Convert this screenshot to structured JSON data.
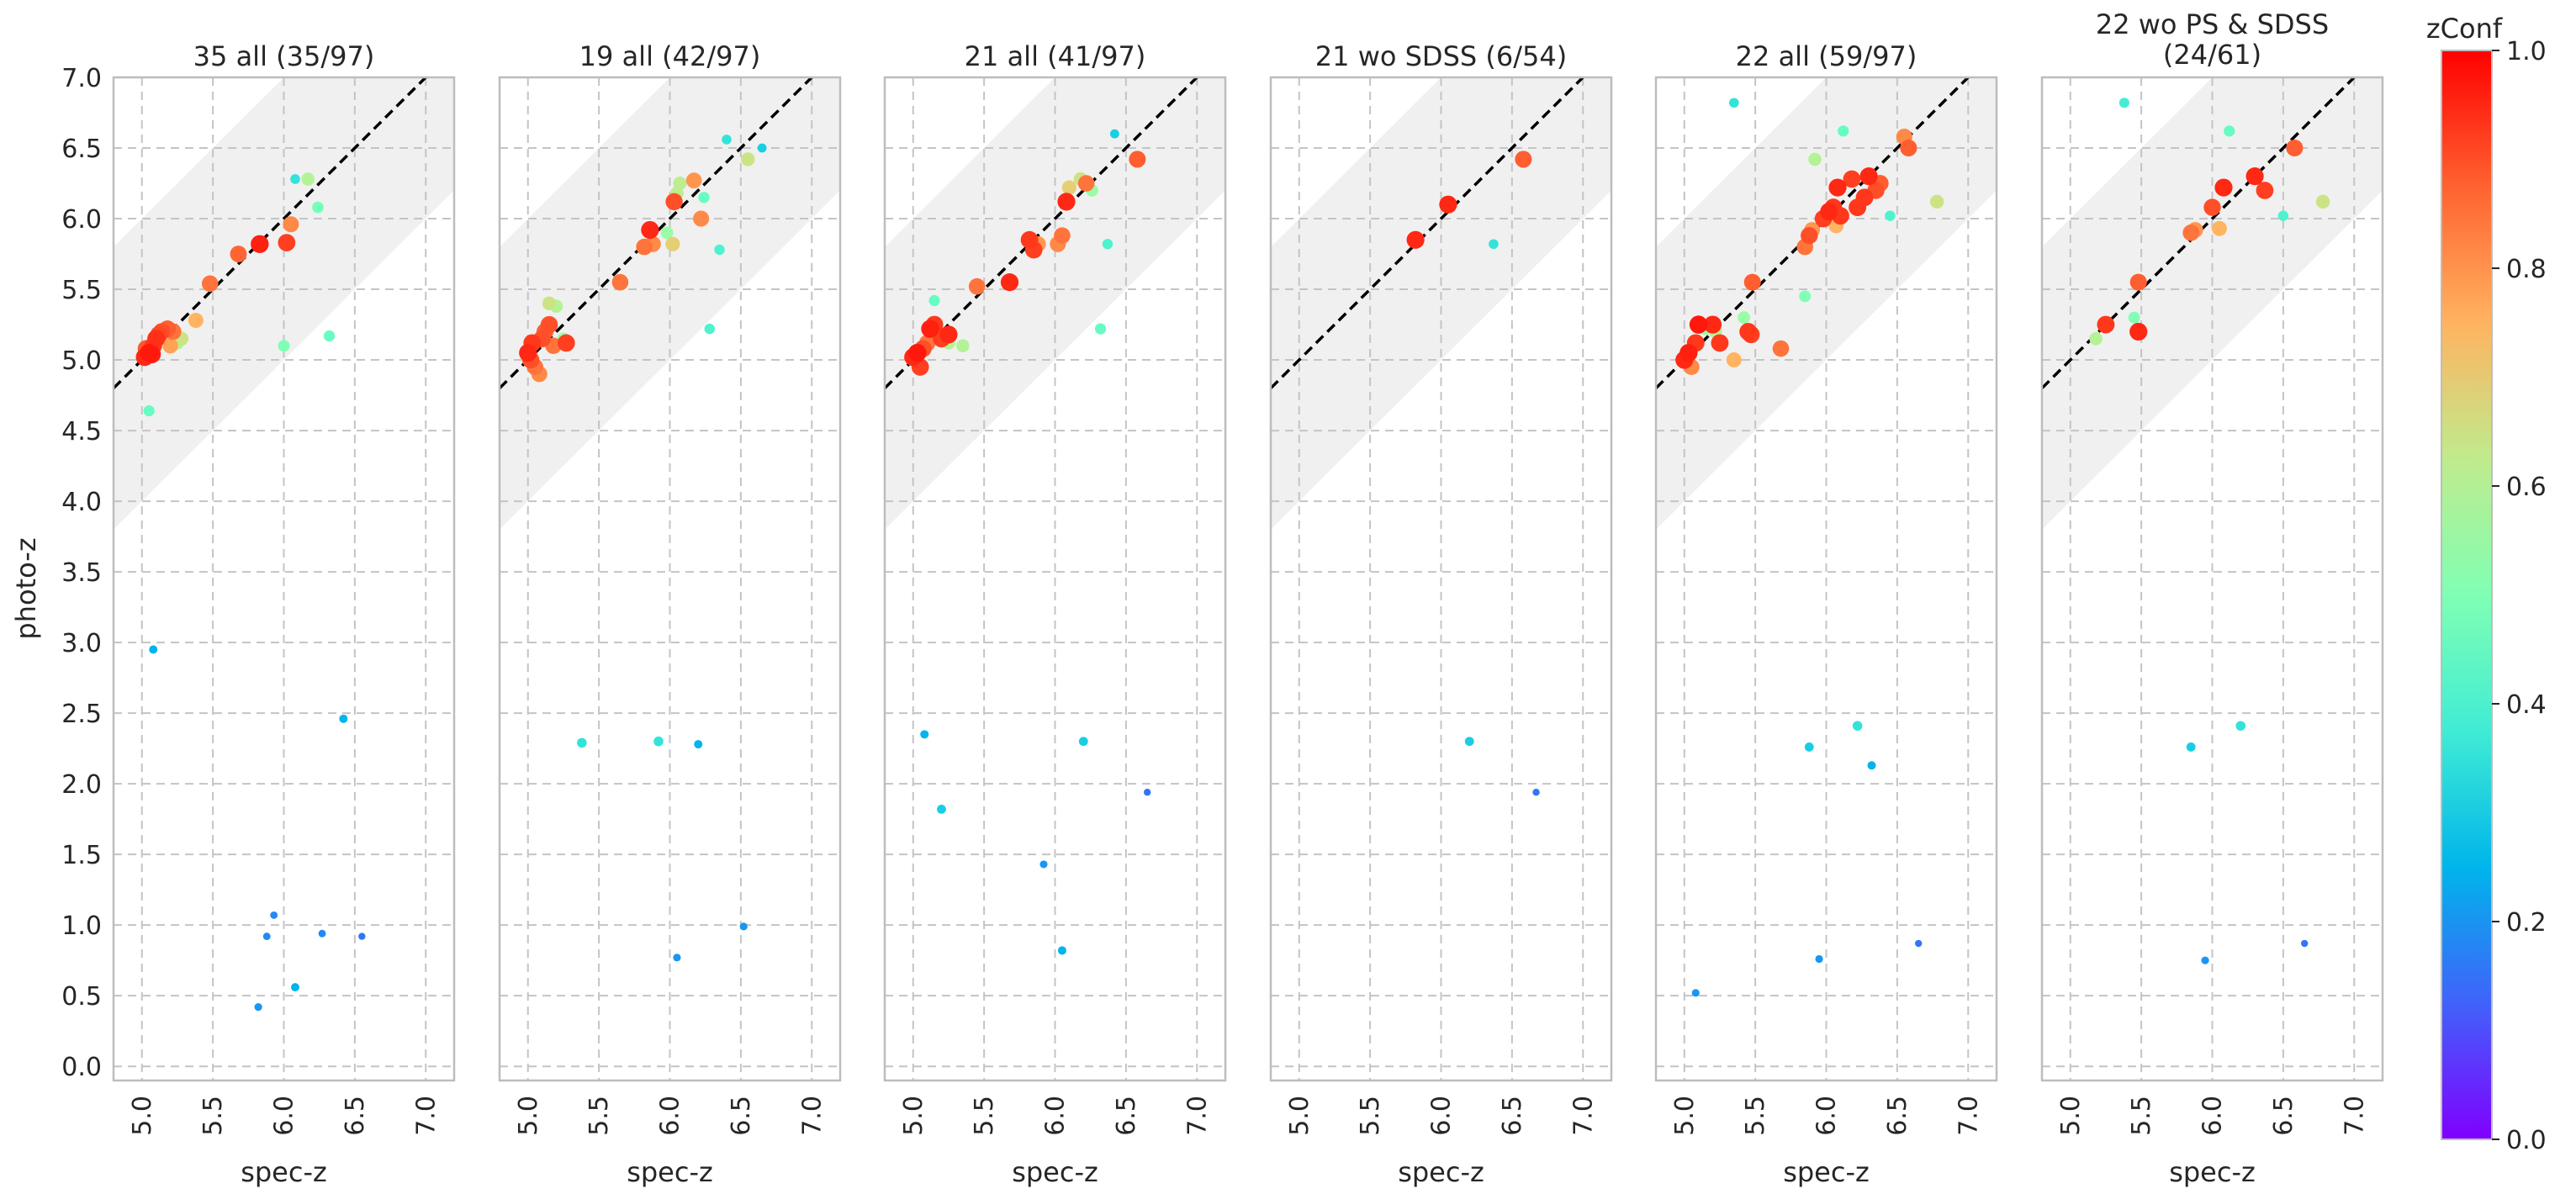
{
  "figure": {
    "ylabel": "photo-z",
    "xlabel": "spec-z",
    "colorbar": {
      "label": "zConf",
      "ticks": [
        "0.0",
        "0.2",
        "0.4",
        "0.6",
        "0.8",
        "1.0"
      ]
    },
    "x_ticks": [
      "5.0",
      "5.5",
      "6.0",
      "6.5",
      "7.0"
    ],
    "y_ticks": [
      "0.0",
      "0.5",
      "1.0",
      "1.5",
      "2.0",
      "2.5",
      "3.0",
      "3.5",
      "4.0",
      "4.5",
      "5.0",
      "5.5",
      "6.0",
      "6.5",
      "7.0"
    ]
  },
  "chart_data": [
    {
      "type": "scatter",
      "title": "35 all (35/97)",
      "xlabel": "spec-z",
      "ylabel": "photo-z",
      "xlim": [
        4.8,
        7.2
      ],
      "ylim": [
        -0.1,
        7.0
      ],
      "grid": true,
      "identity_line": true,
      "shaded_band": true,
      "color_key": "zConf",
      "colormap": "rainbow",
      "color_range": [
        0.0,
        1.0
      ],
      "points": [
        {
          "x": 5.02,
          "y": 5.02,
          "c": 0.95
        },
        {
          "x": 5.05,
          "y": 5.05,
          "c": 0.97
        },
        {
          "x": 5.07,
          "y": 5.04,
          "c": 0.96
        },
        {
          "x": 5.08,
          "y": 5.1,
          "c": 0.93
        },
        {
          "x": 5.1,
          "y": 5.15,
          "c": 0.94
        },
        {
          "x": 5.14,
          "y": 5.2,
          "c": 0.9
        },
        {
          "x": 5.18,
          "y": 5.22,
          "c": 0.88
        },
        {
          "x": 5.2,
          "y": 5.1,
          "c": 0.78
        },
        {
          "x": 5.25,
          "y": 5.12,
          "c": 0.6
        },
        {
          "x": 5.28,
          "y": 5.15,
          "c": 0.65
        },
        {
          "x": 5.22,
          "y": 5.2,
          "c": 0.85
        },
        {
          "x": 5.05,
          "y": 4.64,
          "c": 0.45
        },
        {
          "x": 5.38,
          "y": 5.28,
          "c": 0.75
        },
        {
          "x": 5.48,
          "y": 5.54,
          "c": 0.85
        },
        {
          "x": 5.68,
          "y": 5.75,
          "c": 0.87
        },
        {
          "x": 5.83,
          "y": 5.82,
          "c": 0.96
        },
        {
          "x": 6.02,
          "y": 5.83,
          "c": 0.92
        },
        {
          "x": 6.05,
          "y": 5.96,
          "c": 0.82
        },
        {
          "x": 6.0,
          "y": 5.1,
          "c": 0.5
        },
        {
          "x": 6.08,
          "y": 6.28,
          "c": 0.35
        },
        {
          "x": 6.17,
          "y": 6.28,
          "c": 0.6
        },
        {
          "x": 6.24,
          "y": 6.08,
          "c": 0.48
        },
        {
          "x": 6.32,
          "y": 5.17,
          "c": 0.45
        },
        {
          "x": 5.08,
          "y": 2.95,
          "c": 0.25
        },
        {
          "x": 6.42,
          "y": 2.46,
          "c": 0.25
        },
        {
          "x": 5.93,
          "y": 1.07,
          "c": 0.18
        },
        {
          "x": 5.88,
          "y": 0.92,
          "c": 0.18
        },
        {
          "x": 6.27,
          "y": 0.94,
          "c": 0.18
        },
        {
          "x": 6.55,
          "y": 0.92,
          "c": 0.15
        },
        {
          "x": 5.82,
          "y": 0.42,
          "c": 0.2
        },
        {
          "x": 6.08,
          "y": 0.56,
          "c": 0.25
        },
        {
          "x": 5.12,
          "y": 5.18,
          "c": 0.91
        },
        {
          "x": 5.03,
          "y": 5.08,
          "c": 0.89
        }
      ]
    },
    {
      "type": "scatter",
      "title": "19 all (42/97)",
      "xlabel": "spec-z",
      "ylabel": "photo-z",
      "xlim": [
        4.8,
        7.2
      ],
      "ylim": [
        -0.1,
        7.0
      ],
      "grid": true,
      "identity_line": true,
      "shaded_band": true,
      "color_key": "zConf",
      "colormap": "rainbow",
      "color_range": [
        0.0,
        1.0
      ],
      "points": [
        {
          "x": 5.0,
          "y": 5.05,
          "c": 0.95
        },
        {
          "x": 5.02,
          "y": 5.0,
          "c": 0.9
        },
        {
          "x": 5.05,
          "y": 4.95,
          "c": 0.85
        },
        {
          "x": 5.08,
          "y": 4.9,
          "c": 0.82
        },
        {
          "x": 5.03,
          "y": 5.12,
          "c": 0.93
        },
        {
          "x": 5.1,
          "y": 5.15,
          "c": 0.9
        },
        {
          "x": 5.12,
          "y": 5.2,
          "c": 0.88
        },
        {
          "x": 5.15,
          "y": 5.25,
          "c": 0.9
        },
        {
          "x": 5.18,
          "y": 5.1,
          "c": 0.85
        },
        {
          "x": 5.15,
          "y": 5.4,
          "c": 0.65
        },
        {
          "x": 5.2,
          "y": 5.38,
          "c": 0.6
        },
        {
          "x": 5.25,
          "y": 5.15,
          "c": 0.55
        },
        {
          "x": 5.27,
          "y": 5.12,
          "c": 0.92
        },
        {
          "x": 5.65,
          "y": 5.55,
          "c": 0.85
        },
        {
          "x": 5.82,
          "y": 5.8,
          "c": 0.85
        },
        {
          "x": 5.86,
          "y": 5.92,
          "c": 0.95
        },
        {
          "x": 5.88,
          "y": 5.82,
          "c": 0.82
        },
        {
          "x": 5.98,
          "y": 5.9,
          "c": 0.55
        },
        {
          "x": 6.02,
          "y": 5.82,
          "c": 0.7
        },
        {
          "x": 6.03,
          "y": 6.12,
          "c": 0.9
        },
        {
          "x": 6.05,
          "y": 6.18,
          "c": 0.62
        },
        {
          "x": 6.07,
          "y": 6.25,
          "c": 0.62
        },
        {
          "x": 6.17,
          "y": 6.27,
          "c": 0.8
        },
        {
          "x": 6.22,
          "y": 6.0,
          "c": 0.82
        },
        {
          "x": 6.24,
          "y": 6.15,
          "c": 0.45
        },
        {
          "x": 6.28,
          "y": 5.22,
          "c": 0.4
        },
        {
          "x": 6.35,
          "y": 5.78,
          "c": 0.4
        },
        {
          "x": 6.4,
          "y": 6.56,
          "c": 0.35
        },
        {
          "x": 6.55,
          "y": 6.42,
          "c": 0.65
        },
        {
          "x": 6.65,
          "y": 6.5,
          "c": 0.3
        },
        {
          "x": 5.38,
          "y": 2.29,
          "c": 0.35
        },
        {
          "x": 5.92,
          "y": 2.3,
          "c": 0.35
        },
        {
          "x": 6.2,
          "y": 2.28,
          "c": 0.25
        },
        {
          "x": 6.05,
          "y": 0.77,
          "c": 0.2
        },
        {
          "x": 6.52,
          "y": 0.99,
          "c": 0.2
        }
      ]
    },
    {
      "type": "scatter",
      "title": "21 all (41/97)",
      "xlabel": "spec-z",
      "ylabel": "photo-z",
      "xlim": [
        4.8,
        7.2
      ],
      "ylim": [
        -0.1,
        7.0
      ],
      "grid": true,
      "identity_line": true,
      "shaded_band": true,
      "color_key": "zConf",
      "colormap": "rainbow",
      "color_range": [
        0.0,
        1.0
      ],
      "points": [
        {
          "x": 5.0,
          "y": 5.02,
          "c": 0.95
        },
        {
          "x": 5.03,
          "y": 5.05,
          "c": 0.97
        },
        {
          "x": 5.05,
          "y": 4.95,
          "c": 0.92
        },
        {
          "x": 5.07,
          "y": 5.08,
          "c": 0.9
        },
        {
          "x": 5.1,
          "y": 5.12,
          "c": 0.85
        },
        {
          "x": 5.12,
          "y": 5.22,
          "c": 0.96
        },
        {
          "x": 5.15,
          "y": 5.25,
          "c": 0.93
        },
        {
          "x": 5.2,
          "y": 5.15,
          "c": 0.92
        },
        {
          "x": 5.25,
          "y": 5.18,
          "c": 0.95
        },
        {
          "x": 5.25,
          "y": 5.12,
          "c": 0.6
        },
        {
          "x": 5.35,
          "y": 5.1,
          "c": 0.6
        },
        {
          "x": 5.15,
          "y": 5.42,
          "c": 0.45
        },
        {
          "x": 5.45,
          "y": 5.52,
          "c": 0.85
        },
        {
          "x": 5.68,
          "y": 5.55,
          "c": 0.95
        },
        {
          "x": 5.82,
          "y": 5.85,
          "c": 0.93
        },
        {
          "x": 5.85,
          "y": 5.78,
          "c": 0.92
        },
        {
          "x": 5.88,
          "y": 5.82,
          "c": 0.8
        },
        {
          "x": 6.02,
          "y": 5.82,
          "c": 0.82
        },
        {
          "x": 6.05,
          "y": 5.88,
          "c": 0.85
        },
        {
          "x": 6.08,
          "y": 6.12,
          "c": 0.95
        },
        {
          "x": 6.1,
          "y": 6.22,
          "c": 0.7
        },
        {
          "x": 6.18,
          "y": 6.28,
          "c": 0.65
        },
        {
          "x": 6.22,
          "y": 6.25,
          "c": 0.85
        },
        {
          "x": 6.26,
          "y": 6.2,
          "c": 0.55
        },
        {
          "x": 6.32,
          "y": 5.22,
          "c": 0.45
        },
        {
          "x": 6.37,
          "y": 5.82,
          "c": 0.4
        },
        {
          "x": 6.42,
          "y": 6.6,
          "c": 0.3
        },
        {
          "x": 6.58,
          "y": 6.42,
          "c": 0.88
        },
        {
          "x": 5.08,
          "y": 2.35,
          "c": 0.25
        },
        {
          "x": 5.2,
          "y": 1.82,
          "c": 0.3
        },
        {
          "x": 6.2,
          "y": 2.3,
          "c": 0.3
        },
        {
          "x": 6.65,
          "y": 1.94,
          "c": 0.15
        },
        {
          "x": 5.92,
          "y": 1.43,
          "c": 0.2
        },
        {
          "x": 6.05,
          "y": 0.82,
          "c": 0.25
        }
      ]
    },
    {
      "type": "scatter",
      "title": "21 wo SDSS (6/54)",
      "xlabel": "spec-z",
      "ylabel": "photo-z",
      "xlim": [
        4.8,
        7.2
      ],
      "ylim": [
        -0.1,
        7.0
      ],
      "grid": true,
      "identity_line": true,
      "shaded_band": true,
      "color_key": "zConf",
      "colormap": "rainbow",
      "color_range": [
        0.0,
        1.0
      ],
      "points": [
        {
          "x": 5.82,
          "y": 5.85,
          "c": 0.95
        },
        {
          "x": 6.05,
          "y": 6.1,
          "c": 0.95
        },
        {
          "x": 6.58,
          "y": 6.42,
          "c": 0.88
        },
        {
          "x": 6.37,
          "y": 5.82,
          "c": 0.35
        },
        {
          "x": 6.2,
          "y": 2.3,
          "c": 0.3
        },
        {
          "x": 6.67,
          "y": 1.94,
          "c": 0.15
        }
      ]
    },
    {
      "type": "scatter",
      "title": "22 all (59/97)",
      "xlabel": "spec-z",
      "ylabel": "photo-z",
      "xlim": [
        4.8,
        7.2
      ],
      "ylim": [
        -0.1,
        7.0
      ],
      "grid": true,
      "identity_line": true,
      "shaded_band": true,
      "color_key": "zConf",
      "colormap": "rainbow",
      "color_range": [
        0.0,
        1.0
      ],
      "points": [
        {
          "x": 5.0,
          "y": 5.0,
          "c": 0.95
        },
        {
          "x": 5.03,
          "y": 5.05,
          "c": 0.96
        },
        {
          "x": 5.05,
          "y": 4.95,
          "c": 0.82
        },
        {
          "x": 5.08,
          "y": 5.12,
          "c": 0.93
        },
        {
          "x": 5.1,
          "y": 5.25,
          "c": 0.97
        },
        {
          "x": 5.15,
          "y": 5.22,
          "c": 0.55
        },
        {
          "x": 5.2,
          "y": 5.25,
          "c": 0.95
        },
        {
          "x": 5.25,
          "y": 5.12,
          "c": 0.93
        },
        {
          "x": 5.22,
          "y": 5.2,
          "c": 0.6
        },
        {
          "x": 5.35,
          "y": 5.0,
          "c": 0.75
        },
        {
          "x": 5.42,
          "y": 5.3,
          "c": 0.55
        },
        {
          "x": 5.45,
          "y": 5.2,
          "c": 0.93
        },
        {
          "x": 5.47,
          "y": 5.18,
          "c": 0.92
        },
        {
          "x": 5.48,
          "y": 5.55,
          "c": 0.88
        },
        {
          "x": 5.68,
          "y": 5.08,
          "c": 0.85
        },
        {
          "x": 5.85,
          "y": 5.45,
          "c": 0.5
        },
        {
          "x": 5.85,
          "y": 5.8,
          "c": 0.85
        },
        {
          "x": 5.88,
          "y": 5.88,
          "c": 0.9
        },
        {
          "x": 5.9,
          "y": 5.92,
          "c": 0.8
        },
        {
          "x": 5.92,
          "y": 6.42,
          "c": 0.6
        },
        {
          "x": 5.98,
          "y": 6.0,
          "c": 0.92
        },
        {
          "x": 6.02,
          "y": 6.05,
          "c": 0.95
        },
        {
          "x": 6.05,
          "y": 6.08,
          "c": 0.93
        },
        {
          "x": 6.07,
          "y": 5.95,
          "c": 0.75
        },
        {
          "x": 6.08,
          "y": 6.22,
          "c": 0.95
        },
        {
          "x": 6.1,
          "y": 6.02,
          "c": 0.93
        },
        {
          "x": 6.12,
          "y": 6.62,
          "c": 0.45
        },
        {
          "x": 6.18,
          "y": 6.28,
          "c": 0.92
        },
        {
          "x": 6.22,
          "y": 6.08,
          "c": 0.93
        },
        {
          "x": 6.27,
          "y": 6.15,
          "c": 0.93
        },
        {
          "x": 6.3,
          "y": 6.3,
          "c": 0.95
        },
        {
          "x": 6.35,
          "y": 6.2,
          "c": 0.9
        },
        {
          "x": 6.38,
          "y": 6.25,
          "c": 0.88
        },
        {
          "x": 6.45,
          "y": 6.02,
          "c": 0.4
        },
        {
          "x": 6.55,
          "y": 6.58,
          "c": 0.82
        },
        {
          "x": 6.58,
          "y": 6.5,
          "c": 0.88
        },
        {
          "x": 6.78,
          "y": 6.12,
          "c": 0.65
        },
        {
          "x": 5.35,
          "y": 6.82,
          "c": 0.35
        },
        {
          "x": 5.88,
          "y": 2.26,
          "c": 0.3
        },
        {
          "x": 6.22,
          "y": 2.41,
          "c": 0.35
        },
        {
          "x": 6.32,
          "y": 2.13,
          "c": 0.25
        },
        {
          "x": 5.08,
          "y": 0.52,
          "c": 0.2
        },
        {
          "x": 5.95,
          "y": 0.76,
          "c": 0.2
        },
        {
          "x": 6.65,
          "y": 0.87,
          "c": 0.15
        }
      ]
    },
    {
      "type": "scatter",
      "title": "22 wo PS & SDSS\n(24/61)",
      "xlabel": "spec-z",
      "ylabel": "photo-z",
      "xlim": [
        4.8,
        7.2
      ],
      "ylim": [
        -0.1,
        7.0
      ],
      "grid": true,
      "identity_line": true,
      "shaded_band": true,
      "color_key": "zConf",
      "colormap": "rainbow",
      "color_range": [
        0.0,
        1.0
      ],
      "points": [
        {
          "x": 5.18,
          "y": 5.15,
          "c": 0.6
        },
        {
          "x": 5.25,
          "y": 5.25,
          "c": 0.93
        },
        {
          "x": 5.45,
          "y": 5.3,
          "c": 0.5
        },
        {
          "x": 5.48,
          "y": 5.55,
          "c": 0.88
        },
        {
          "x": 5.48,
          "y": 5.2,
          "c": 0.95
        },
        {
          "x": 5.38,
          "y": 6.82,
          "c": 0.38
        },
        {
          "x": 5.85,
          "y": 5.9,
          "c": 0.85
        },
        {
          "x": 5.88,
          "y": 5.92,
          "c": 0.8
        },
        {
          "x": 6.0,
          "y": 6.08,
          "c": 0.9
        },
        {
          "x": 6.05,
          "y": 5.93,
          "c": 0.75
        },
        {
          "x": 6.08,
          "y": 6.22,
          "c": 0.95
        },
        {
          "x": 6.12,
          "y": 6.62,
          "c": 0.45
        },
        {
          "x": 6.3,
          "y": 6.3,
          "c": 0.95
        },
        {
          "x": 6.37,
          "y": 6.2,
          "c": 0.92
        },
        {
          "x": 6.5,
          "y": 6.02,
          "c": 0.4
        },
        {
          "x": 6.58,
          "y": 6.5,
          "c": 0.88
        },
        {
          "x": 6.78,
          "y": 6.12,
          "c": 0.65
        },
        {
          "x": 5.85,
          "y": 2.26,
          "c": 0.3
        },
        {
          "x": 6.2,
          "y": 2.41,
          "c": 0.35
        },
        {
          "x": 5.95,
          "y": 0.75,
          "c": 0.2
        },
        {
          "x": 6.65,
          "y": 0.87,
          "c": 0.15
        }
      ]
    }
  ]
}
